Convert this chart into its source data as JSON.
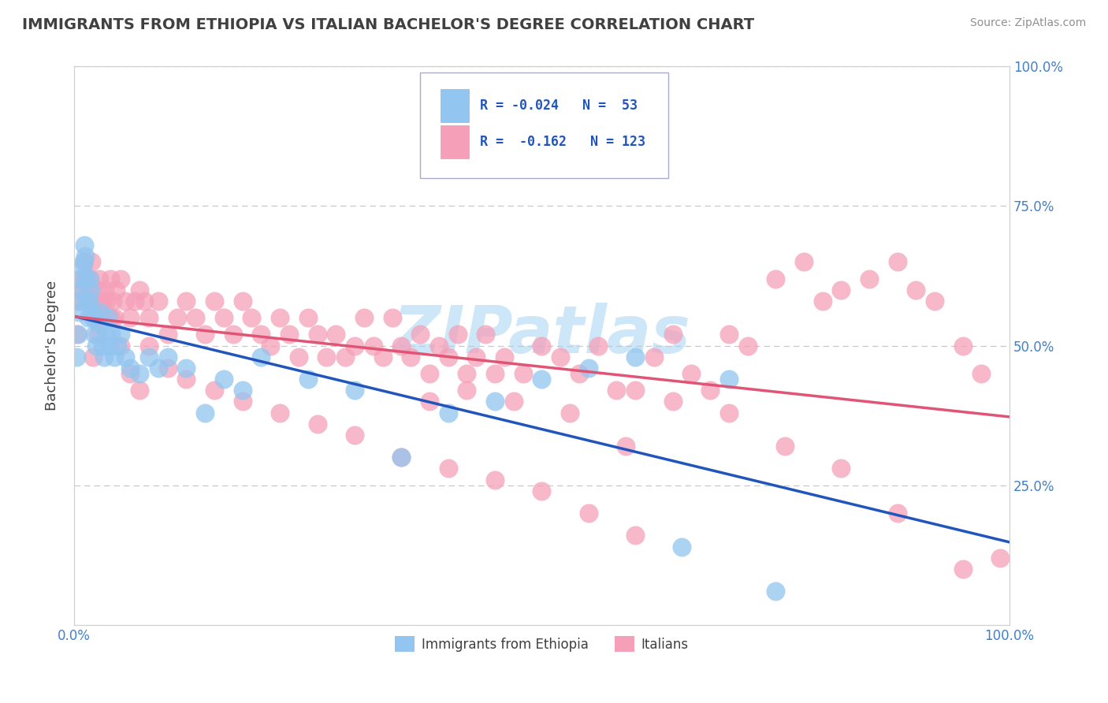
{
  "title": "IMMIGRANTS FROM ETHIOPIA VS ITALIAN BACHELOR'S DEGREE CORRELATION CHART",
  "source": "Source: ZipAtlas.com",
  "ylabel": "Bachelor's Degree",
  "blue_color": "#92C5F0",
  "pink_color": "#F5A0B8",
  "blue_line_color": "#2255BB",
  "pink_line_color": "#E05575",
  "title_color": "#404040",
  "source_color": "#909090",
  "legend_text_color": "#2255BB",
  "background_color": "#ffffff",
  "watermark_color": "#C8E4F8",
  "watermark_text": "ZIPatlas",
  "grid_color": "#C8C8C8",
  "tick_label_color": "#4080CC",
  "blue_x": [
    0.003,
    0.004,
    0.005,
    0.006,
    0.007,
    0.008,
    0.009,
    0.01,
    0.011,
    0.012,
    0.013,
    0.014,
    0.015,
    0.016,
    0.017,
    0.018,
    0.019,
    0.02,
    0.022,
    0.024,
    0.026,
    0.028,
    0.03,
    0.032,
    0.034,
    0.036,
    0.038,
    0.04,
    0.043,
    0.046,
    0.05,
    0.055,
    0.06,
    0.07,
    0.08,
    0.09,
    0.1,
    0.12,
    0.14,
    0.16,
    0.18,
    0.2,
    0.25,
    0.3,
    0.35,
    0.4,
    0.45,
    0.5,
    0.55,
    0.6,
    0.65,
    0.7,
    0.75
  ],
  "blue_y": [
    0.48,
    0.52,
    0.56,
    0.6,
    0.58,
    0.62,
    0.64,
    0.65,
    0.68,
    0.66,
    0.62,
    0.58,
    0.55,
    0.58,
    0.62,
    0.6,
    0.56,
    0.55,
    0.52,
    0.5,
    0.54,
    0.56,
    0.5,
    0.48,
    0.52,
    0.55,
    0.5,
    0.52,
    0.48,
    0.5,
    0.52,
    0.48,
    0.46,
    0.45,
    0.48,
    0.46,
    0.48,
    0.46,
    0.38,
    0.44,
    0.42,
    0.48,
    0.44,
    0.42,
    0.3,
    0.38,
    0.4,
    0.44,
    0.46,
    0.48,
    0.14,
    0.44,
    0.06
  ],
  "pink_x": [
    0.003,
    0.005,
    0.007,
    0.009,
    0.011,
    0.013,
    0.015,
    0.017,
    0.019,
    0.021,
    0.023,
    0.025,
    0.027,
    0.029,
    0.031,
    0.033,
    0.035,
    0.037,
    0.039,
    0.041,
    0.043,
    0.045,
    0.05,
    0.055,
    0.06,
    0.065,
    0.07,
    0.075,
    0.08,
    0.09,
    0.1,
    0.11,
    0.12,
    0.13,
    0.14,
    0.15,
    0.16,
    0.17,
    0.18,
    0.19,
    0.2,
    0.21,
    0.22,
    0.23,
    0.24,
    0.25,
    0.26,
    0.27,
    0.28,
    0.29,
    0.3,
    0.31,
    0.32,
    0.33,
    0.34,
    0.35,
    0.36,
    0.37,
    0.38,
    0.39,
    0.4,
    0.41,
    0.42,
    0.43,
    0.44,
    0.45,
    0.46,
    0.48,
    0.5,
    0.52,
    0.54,
    0.56,
    0.58,
    0.6,
    0.62,
    0.64,
    0.66,
    0.68,
    0.7,
    0.72,
    0.75,
    0.78,
    0.8,
    0.82,
    0.85,
    0.88,
    0.9,
    0.92,
    0.95,
    0.97,
    0.99,
    0.38,
    0.42,
    0.47,
    0.53,
    0.59,
    0.64,
    0.7,
    0.76,
    0.82,
    0.88,
    0.95,
    0.02,
    0.025,
    0.03,
    0.04,
    0.05,
    0.06,
    0.07,
    0.08,
    0.1,
    0.12,
    0.15,
    0.18,
    0.22,
    0.26,
    0.3,
    0.35,
    0.4,
    0.45,
    0.5,
    0.55,
    0.6
  ],
  "pink_y": [
    0.52,
    0.58,
    0.62,
    0.6,
    0.65,
    0.62,
    0.6,
    0.62,
    0.65,
    0.58,
    0.55,
    0.6,
    0.62,
    0.58,
    0.55,
    0.6,
    0.58,
    0.55,
    0.62,
    0.58,
    0.55,
    0.6,
    0.62,
    0.58,
    0.55,
    0.58,
    0.6,
    0.58,
    0.55,
    0.58,
    0.52,
    0.55,
    0.58,
    0.55,
    0.52,
    0.58,
    0.55,
    0.52,
    0.58,
    0.55,
    0.52,
    0.5,
    0.55,
    0.52,
    0.48,
    0.55,
    0.52,
    0.48,
    0.52,
    0.48,
    0.5,
    0.55,
    0.5,
    0.48,
    0.55,
    0.5,
    0.48,
    0.52,
    0.45,
    0.5,
    0.48,
    0.52,
    0.45,
    0.48,
    0.52,
    0.45,
    0.48,
    0.45,
    0.5,
    0.48,
    0.45,
    0.5,
    0.42,
    0.42,
    0.48,
    0.52,
    0.45,
    0.42,
    0.52,
    0.5,
    0.62,
    0.65,
    0.58,
    0.6,
    0.62,
    0.65,
    0.6,
    0.58,
    0.5,
    0.45,
    0.12,
    0.4,
    0.42,
    0.4,
    0.38,
    0.32,
    0.4,
    0.38,
    0.32,
    0.28,
    0.2,
    0.1,
    0.48,
    0.52,
    0.58,
    0.55,
    0.5,
    0.45,
    0.42,
    0.5,
    0.46,
    0.44,
    0.42,
    0.4,
    0.38,
    0.36,
    0.34,
    0.3,
    0.28,
    0.26,
    0.24,
    0.2,
    0.16
  ]
}
